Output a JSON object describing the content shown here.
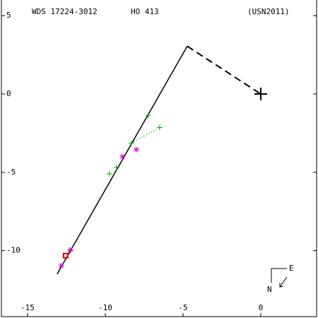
{
  "chart_data": {
    "type": "scatter",
    "header": [
      "WDS 17224-3012",
      "HO  413",
      "(USN2011)"
    ],
    "compass": [
      "N",
      "E"
    ],
    "xlim": [
      -16.77,
      3.68
    ],
    "ylim": [
      -14.3,
      6.0
    ],
    "xticks": [
      -15,
      -10,
      -5,
      0
    ],
    "yticks": [
      5,
      0,
      -5,
      -10
    ],
    "lines": [
      {
        "x": [
          -13.1,
          -4.73
        ],
        "values": [
          -11.5,
          3.05
        ],
        "color": "#000000",
        "dash": false
      },
      {
        "x": [
          -4.73,
          0
        ],
        "values": [
          3.05,
          0
        ],
        "color": "#000000",
        "dash": true
      },
      {
        "x": [
          -8.32,
          -6.5
        ],
        "values": [
          -3.14,
          -2.14
        ],
        "color": "#00aa00",
        "dash": "dot"
      }
    ],
    "series": [
      {
        "color": "#00aa00",
        "marker": "plus",
        "x": [
          -7.23,
          -6.5,
          -8.32,
          -9.27,
          -9.73,
          -12.23
        ],
        "values": [
          -1.36,
          -2.14,
          -3.14,
          -4.68,
          -5.09,
          -10.0
        ]
      },
      {
        "color": "#dd00dd",
        "marker": "star",
        "x": [
          -8.0,
          -8.9,
          -12.82,
          -12.25
        ],
        "values": [
          -3.55,
          -4.0,
          -10.95,
          -9.95
        ]
      },
      {
        "color": "#dd0000",
        "marker": "square",
        "x": [
          -12.55
        ],
        "values": [
          -10.32
        ]
      },
      {
        "color": "#000000",
        "marker": "bigplus",
        "x": [
          0
        ],
        "values": [
          0
        ]
      }
    ]
  }
}
